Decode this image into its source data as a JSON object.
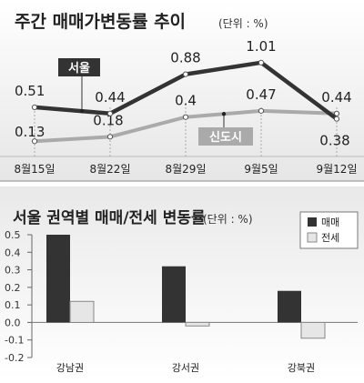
{
  "chart_data": [
    {
      "type": "line",
      "title": "주간 매매가변동률 추이",
      "unit": "(단위 : %)",
      "categories": [
        "8월15일",
        "8월22일",
        "8월29일",
        "9월5일",
        "9월12일"
      ],
      "series": [
        {
          "name": "서울",
          "values": [
            0.51,
            0.44,
            0.88,
            1.01,
            0.38
          ],
          "labels": [
            "0.51",
            "0.44",
            "0.88",
            "1.01",
            "0.38"
          ]
        },
        {
          "name": "신도시",
          "values": [
            0.13,
            0.18,
            0.4,
            0.47,
            0.44
          ],
          "labels": [
            "0.13",
            "0.18",
            "0.4",
            "0.47",
            "0.44"
          ]
        }
      ],
      "ylim": [
        0,
        1.1
      ],
      "colors": {
        "서울": "#333333",
        "신도시": "#aaaaaa"
      }
    },
    {
      "type": "bar",
      "title": "서울 권역별 매매/전세 변동률",
      "unit": "(단위 : %)",
      "categories": [
        "강남권",
        "강서권",
        "강북권"
      ],
      "series": [
        {
          "name": "매매",
          "values": [
            0.5,
            0.32,
            0.18
          ],
          "color": "#333333"
        },
        {
          "name": "전세",
          "values": [
            0.12,
            -0.02,
            -0.09
          ],
          "color": "#e6e6e6"
        }
      ],
      "ylim": [
        -0.2,
        0.5
      ],
      "yticks": [
        "0.5",
        "0.4",
        "0.3",
        "0.2",
        "0.1",
        "0.0",
        "-0.1",
        "-0.2"
      ],
      "legend": "top-right"
    }
  ]
}
